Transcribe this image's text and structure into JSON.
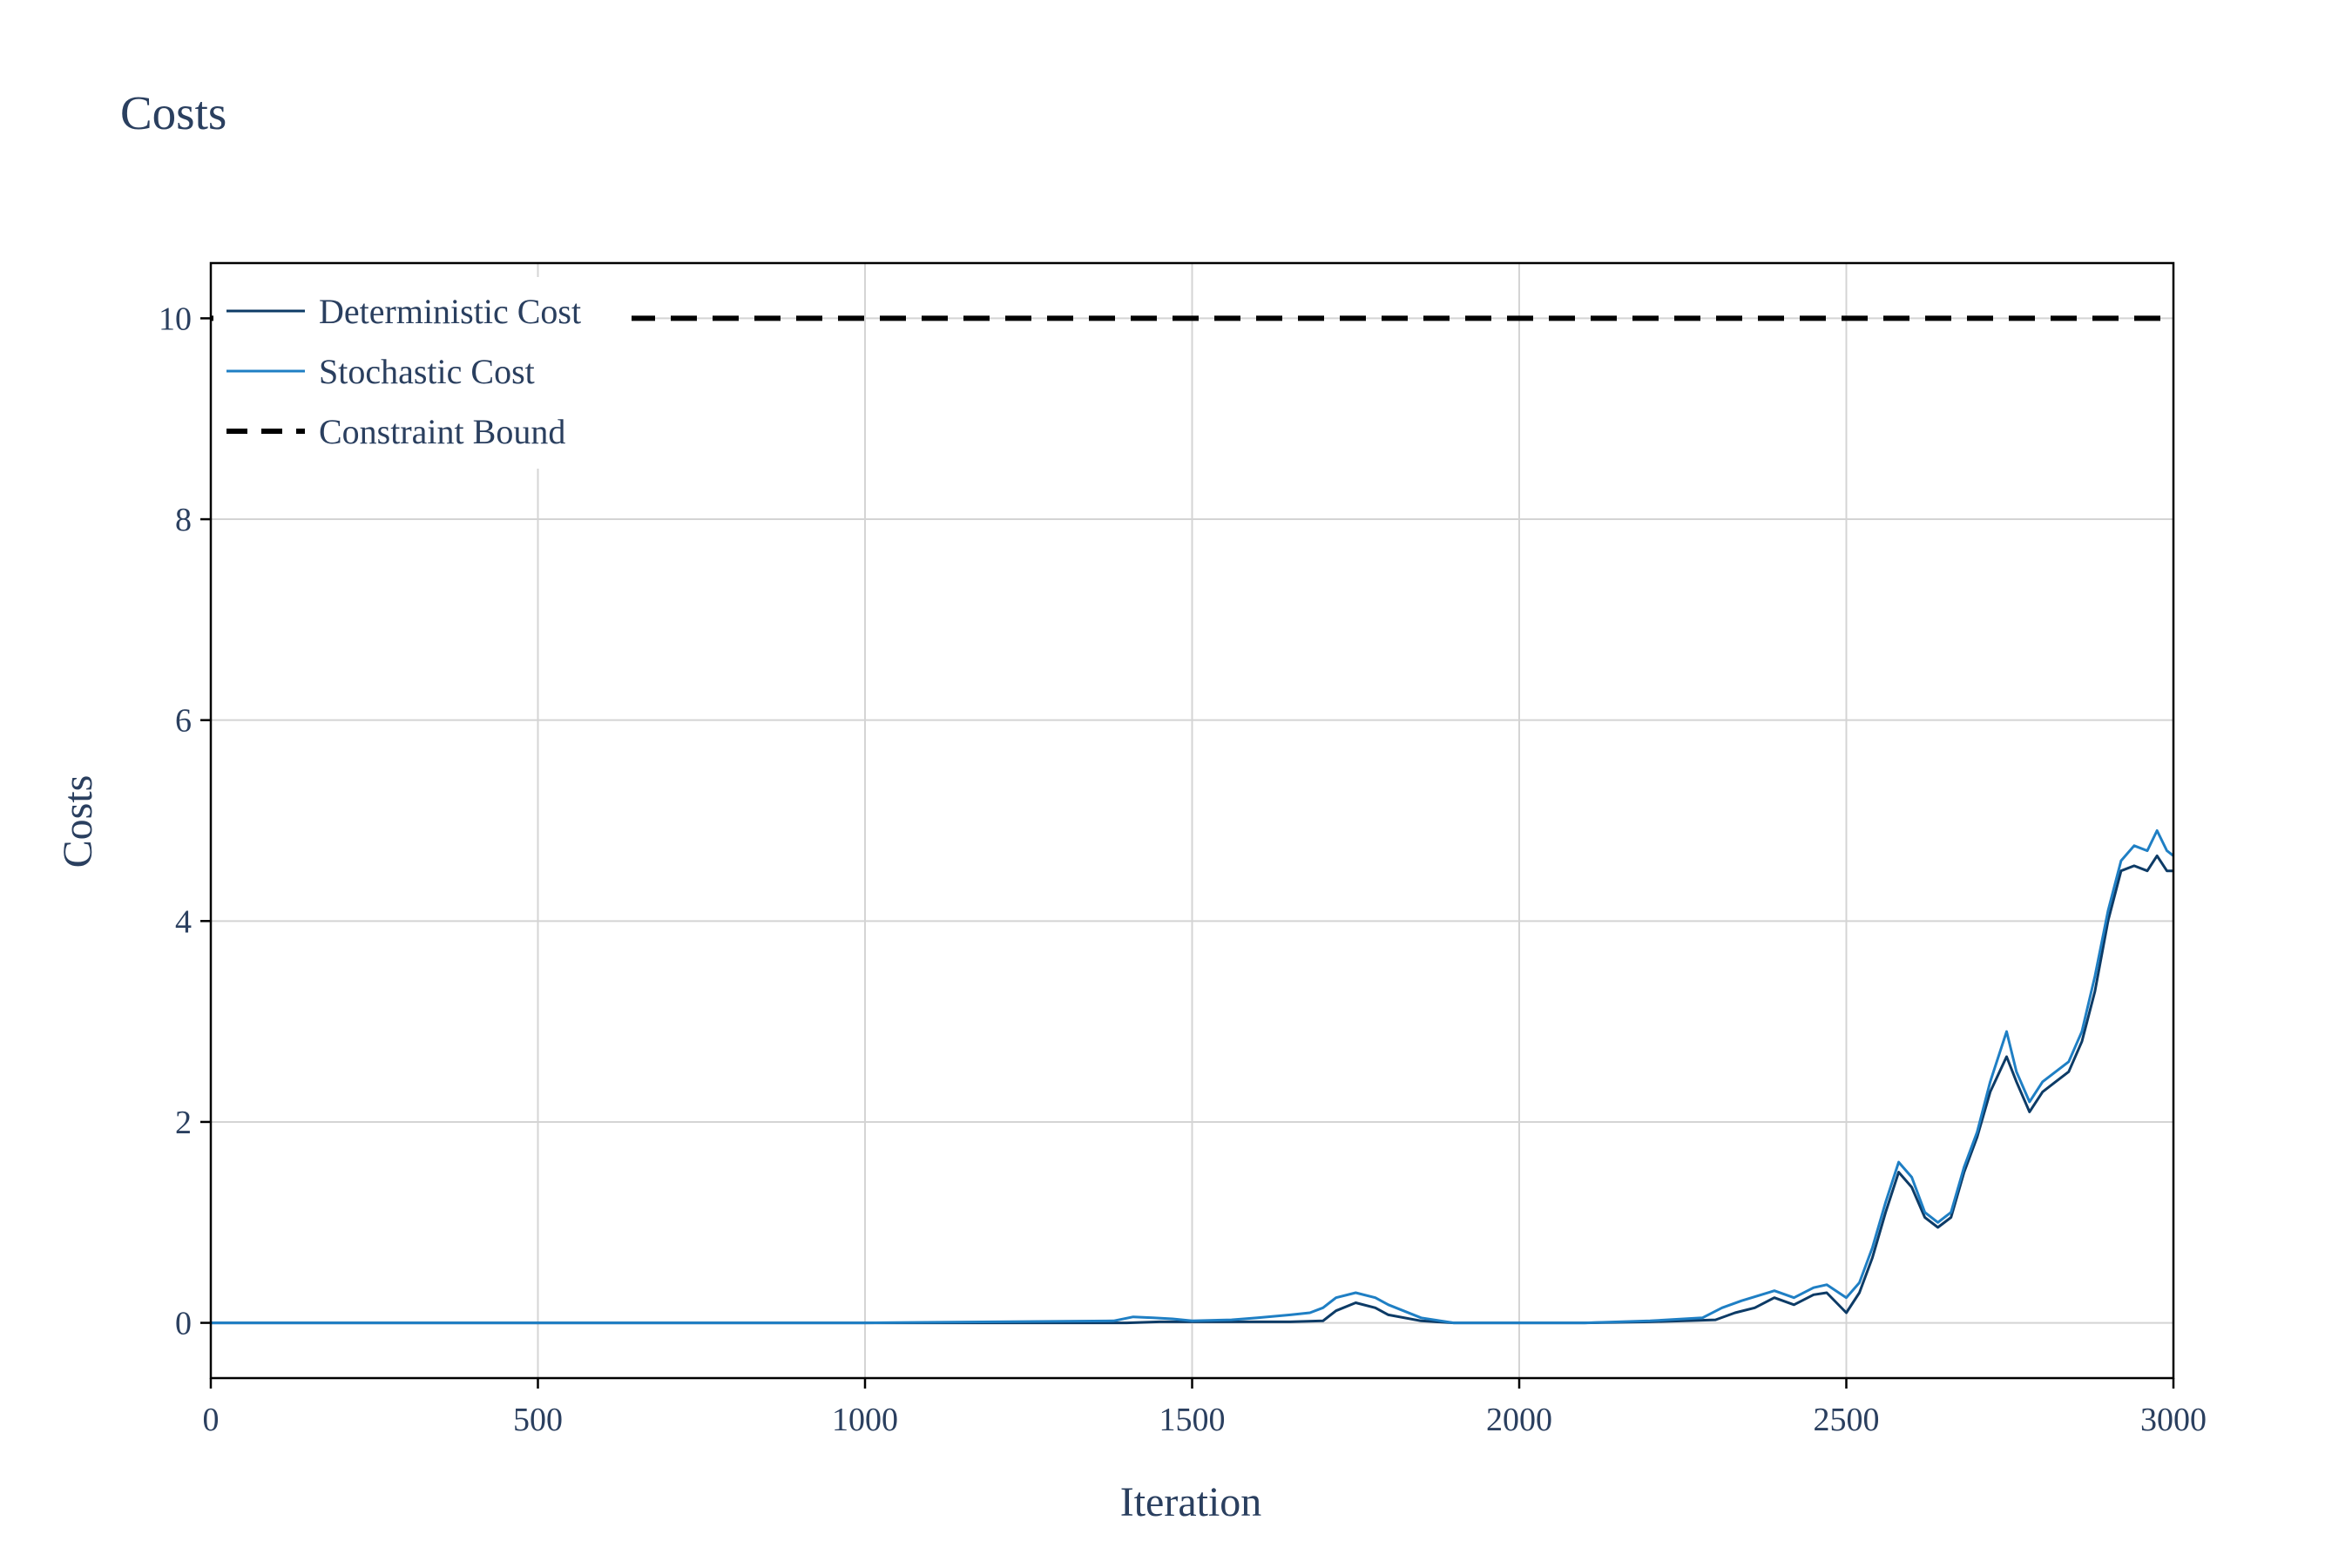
{
  "chart_data": {
    "type": "line",
    "title": "Costs",
    "xlabel": "Iteration",
    "ylabel": "Costs",
    "xlim": [
      0,
      3000
    ],
    "ylim": [
      -0.55,
      10.55
    ],
    "xticks": [
      0,
      500,
      1000,
      1500,
      2000,
      2500,
      3000
    ],
    "yticks": [
      0,
      2,
      4,
      6,
      8,
      10
    ],
    "grid": true,
    "legend_position": "top-left",
    "series": [
      {
        "name": "Deterministic Cost",
        "color": "#0d3b66",
        "style": "solid",
        "x": [
          0,
          200,
          400,
          600,
          800,
          1000,
          1200,
          1400,
          1450,
          1500,
          1600,
          1650,
          1700,
          1720,
          1750,
          1780,
          1800,
          1850,
          1900,
          2000,
          2100,
          2200,
          2300,
          2330,
          2360,
          2390,
          2420,
          2450,
          2470,
          2500,
          2520,
          2540,
          2560,
          2580,
          2600,
          2620,
          2640,
          2660,
          2680,
          2700,
          2720,
          2745,
          2760,
          2780,
          2800,
          2820,
          2840,
          2860,
          2880,
          2900,
          2920,
          2940,
          2960,
          2975,
          2990,
          3000
        ],
        "y": [
          0,
          0,
          0,
          0,
          0,
          0,
          0,
          0,
          0.01,
          0.01,
          0.01,
          0.01,
          0.02,
          0.12,
          0.2,
          0.15,
          0.08,
          0.02,
          0,
          0,
          0,
          0.01,
          0.03,
          0.1,
          0.15,
          0.25,
          0.18,
          0.28,
          0.3,
          0.1,
          0.3,
          0.65,
          1.1,
          1.5,
          1.35,
          1.05,
          0.95,
          1.05,
          1.5,
          1.85,
          2.3,
          2.65,
          2.4,
          2.1,
          2.3,
          2.4,
          2.5,
          2.8,
          3.3,
          4,
          4.5,
          4.55,
          4.5,
          4.65,
          4.5,
          4.5
        ]
      },
      {
        "name": "Stochastic Cost",
        "color": "#1f7fc4",
        "style": "solid",
        "x": [
          0,
          200,
          400,
          600,
          800,
          1000,
          1200,
          1380,
          1410,
          1440,
          1470,
          1500,
          1560,
          1600,
          1650,
          1680,
          1700,
          1720,
          1750,
          1780,
          1800,
          1850,
          1900,
          2000,
          2100,
          2200,
          2280,
          2310,
          2340,
          2370,
          2390,
          2420,
          2450,
          2470,
          2500,
          2520,
          2540,
          2560,
          2580,
          2600,
          2620,
          2640,
          2660,
          2680,
          2700,
          2720,
          2745,
          2760,
          2780,
          2800,
          2820,
          2840,
          2860,
          2880,
          2900,
          2920,
          2940,
          2960,
          2975,
          2990,
          3000
        ],
        "y": [
          0,
          0,
          0,
          0,
          0,
          0,
          0.01,
          0.02,
          0.06,
          0.05,
          0.04,
          0.02,
          0.03,
          0.05,
          0.08,
          0.1,
          0.15,
          0.25,
          0.3,
          0.25,
          0.18,
          0.05,
          0,
          0,
          0,
          0.02,
          0.05,
          0.15,
          0.22,
          0.28,
          0.32,
          0.25,
          0.35,
          0.38,
          0.25,
          0.4,
          0.75,
          1.2,
          1.6,
          1.45,
          1.1,
          1,
          1.1,
          1.55,
          1.9,
          2.4,
          2.9,
          2.5,
          2.2,
          2.4,
          2.5,
          2.6,
          2.9,
          3.45,
          4.1,
          4.6,
          4.75,
          4.7,
          4.9,
          4.7,
          4.65
        ]
      },
      {
        "name": "Constraint Bound",
        "color": "#000000",
        "style": "dash",
        "x": [
          0,
          3000
        ],
        "y": [
          10,
          10
        ]
      }
    ]
  }
}
